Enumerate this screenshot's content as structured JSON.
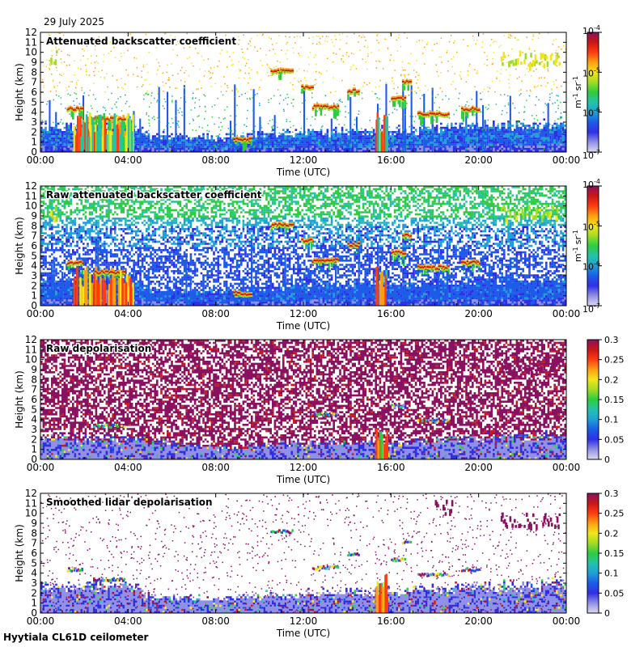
{
  "date": "29 July 2025",
  "footer": "Hyytiala CL61D ceilometer",
  "colors": {
    "scale": [
      "#dcdcf0",
      "#9090e6",
      "#2f2fe6",
      "#1c5ce8",
      "#1ea0d8",
      "#22c4a8",
      "#2ecc40",
      "#a2dc22",
      "#f2e61a",
      "#ff9f10",
      "#ff3c10",
      "#c81818",
      "#8a1060"
    ],
    "noise": "#c8c8ec"
  },
  "chart_data": [
    {
      "type": "heatmap",
      "title": "Attenuated backscatter coefficient",
      "xlabel": "Time (UTC)",
      "ylabel": "Height (km)",
      "xticks": [
        "00:00",
        "04:00",
        "08:00",
        "12:00",
        "16:00",
        "20:00",
        "00:00"
      ],
      "yticks": [
        "0",
        "1",
        "2",
        "3",
        "4",
        "5",
        "6",
        "7",
        "8",
        "9",
        "10",
        "11",
        "12"
      ],
      "ylim": [
        0,
        12
      ],
      "xlim_hours": [
        0,
        24
      ],
      "colorbar": {
        "scale": "log",
        "range": [
          1e-07,
          0.0001
        ],
        "ticks": [
          {
            "base": "10",
            "exp": "-7"
          },
          {
            "base": "10",
            "exp": "-6"
          },
          {
            "base": "10",
            "exp": "-5"
          },
          {
            "base": "10",
            "exp": "-4"
          }
        ],
        "unit": {
          "m": "m",
          "m_exp": "-1",
          "sr": "sr",
          "sr_exp": "-1"
        }
      },
      "scene": {
        "boundary_layer_top_km": [
          [
            0,
            3.0
          ],
          [
            2,
            3.2
          ],
          [
            4,
            3.5
          ],
          [
            5,
            2.0
          ],
          [
            8,
            1.8
          ],
          [
            12,
            2.4
          ],
          [
            16,
            2.6
          ],
          [
            20,
            3.1
          ],
          [
            24,
            3.4
          ]
        ],
        "cloud_layers": [
          {
            "t0": 1.2,
            "t1": 1.9,
            "h": 4.3
          },
          {
            "t0": 2.4,
            "t1": 3.8,
            "h": 3.3
          },
          {
            "t0": 8.8,
            "t1": 9.6,
            "h": 1.2
          },
          {
            "t0": 10.5,
            "t1": 11.5,
            "h": 8.1
          },
          {
            "t0": 11.9,
            "t1": 12.4,
            "h": 6.5
          },
          {
            "t0": 12.4,
            "t1": 13.6,
            "h": 4.5
          },
          {
            "t0": 14.0,
            "t1": 14.5,
            "h": 6.1
          },
          {
            "t0": 16.0,
            "t1": 16.6,
            "h": 5.3
          },
          {
            "t0": 16.5,
            "t1": 16.9,
            "h": 7.0
          },
          {
            "t0": 17.2,
            "t1": 18.6,
            "h": 3.8
          },
          {
            "t0": 19.2,
            "t1": 20.0,
            "h": 4.3
          }
        ],
        "high_layers": [
          {
            "t0": 21.0,
            "t1": 23.7,
            "h": 9.5
          },
          {
            "t0": 0.4,
            "t1": 0.8,
            "h": 9.6
          }
        ],
        "precipitation": [
          {
            "t0": 1.5,
            "t1": 4.2
          },
          {
            "t0": 15.3,
            "t1": 15.8
          }
        ],
        "clear_sky_noise": false,
        "depol": false
      }
    },
    {
      "type": "heatmap",
      "title": "Raw attenuated backscatter coefficient",
      "xlabel": "Time (UTC)",
      "ylabel": "Height (km)",
      "xticks": [
        "00:00",
        "04:00",
        "08:00",
        "12:00",
        "16:00",
        "20:00",
        "00:00"
      ],
      "yticks": [
        "0",
        "1",
        "2",
        "3",
        "4",
        "5",
        "6",
        "7",
        "8",
        "9",
        "10",
        "11",
        "12"
      ],
      "ylim": [
        0,
        12
      ],
      "xlim_hours": [
        0,
        24
      ],
      "colorbar": {
        "scale": "log",
        "range": [
          1e-07,
          0.0001
        ],
        "ticks": [
          {
            "base": "10",
            "exp": "-7"
          },
          {
            "base": "10",
            "exp": "-6"
          },
          {
            "base": "10",
            "exp": "-5"
          },
          {
            "base": "10",
            "exp": "-4"
          }
        ],
        "unit": {
          "m": "m",
          "m_exp": "-1",
          "sr": "sr",
          "sr_exp": "-1"
        }
      },
      "scene": {
        "boundary_layer_top_km": [
          [
            0,
            3.0
          ],
          [
            2,
            3.2
          ],
          [
            4,
            3.5
          ],
          [
            5,
            2.0
          ],
          [
            8,
            1.8
          ],
          [
            12,
            2.4
          ],
          [
            16,
            2.6
          ],
          [
            20,
            3.1
          ],
          [
            24,
            3.4
          ]
        ],
        "cloud_layers": [
          {
            "t0": 1.2,
            "t1": 1.9,
            "h": 4.3
          },
          {
            "t0": 2.4,
            "t1": 3.8,
            "h": 3.3
          },
          {
            "t0": 8.8,
            "t1": 9.6,
            "h": 1.2
          },
          {
            "t0": 10.5,
            "t1": 11.5,
            "h": 8.1
          },
          {
            "t0": 11.9,
            "t1": 12.4,
            "h": 6.5
          },
          {
            "t0": 12.4,
            "t1": 13.6,
            "h": 4.5
          },
          {
            "t0": 14.0,
            "t1": 14.5,
            "h": 6.1
          },
          {
            "t0": 16.0,
            "t1": 16.6,
            "h": 5.3
          },
          {
            "t0": 16.5,
            "t1": 16.9,
            "h": 7.0
          },
          {
            "t0": 17.2,
            "t1": 18.6,
            "h": 3.8
          },
          {
            "t0": 19.2,
            "t1": 20.0,
            "h": 4.3
          }
        ],
        "high_layers": [
          {
            "t0": 21.0,
            "t1": 23.7,
            "h": 9.5
          },
          {
            "t0": 0.4,
            "t1": 0.8,
            "h": 9.6
          }
        ],
        "precipitation": [
          {
            "t0": 1.5,
            "t1": 4.2
          },
          {
            "t0": 15.3,
            "t1": 15.8
          }
        ],
        "clear_sky_noise": true,
        "depol": false
      }
    },
    {
      "type": "heatmap",
      "title": "Raw depolarisation",
      "xlabel": "Time (UTC)",
      "ylabel": "Height (km)",
      "xticks": [
        "00:00",
        "04:00",
        "08:00",
        "12:00",
        "16:00",
        "20:00",
        "00:00"
      ],
      "yticks": [
        "0",
        "1",
        "2",
        "3",
        "4",
        "5",
        "6",
        "7",
        "8",
        "9",
        "10",
        "11",
        "12"
      ],
      "ylim": [
        0,
        12
      ],
      "xlim_hours": [
        0,
        24
      ],
      "colorbar": {
        "scale": "linear",
        "range": [
          0,
          0.3
        ],
        "ticks": [
          "0",
          "0.05",
          "0.1",
          "0.15",
          "0.2",
          "0.25",
          "0.3"
        ]
      },
      "scene": {
        "boundary_layer_top_km": [
          [
            0,
            2.6
          ],
          [
            4,
            2.4
          ],
          [
            8,
            1.5
          ],
          [
            12,
            2.0
          ],
          [
            16,
            2.0
          ],
          [
            20,
            2.6
          ],
          [
            24,
            2.8
          ]
        ],
        "cloud_layers": [
          {
            "t0": 2.4,
            "t1": 3.8,
            "h": 3.3
          },
          {
            "t0": 12.4,
            "t1": 13.6,
            "h": 4.5
          },
          {
            "t0": 16.0,
            "t1": 16.6,
            "h": 5.3
          },
          {
            "t0": 17.2,
            "t1": 18.6,
            "h": 3.8
          }
        ],
        "high_layers": [
          {
            "t0": 21.0,
            "t1": 23.7,
            "h": 9.5
          }
        ],
        "precipitation": [
          {
            "t0": 15.3,
            "t1": 15.8
          }
        ],
        "clear_sky_noise": true,
        "depol": true,
        "depol_noise": true
      }
    },
    {
      "type": "heatmap",
      "title": "Smoothed lidar depolarisation",
      "xlabel": "Time (UTC)",
      "ylabel": "Height (km)",
      "xticks": [
        "00:00",
        "04:00",
        "08:00",
        "12:00",
        "16:00",
        "20:00",
        "00:00"
      ],
      "yticks": [
        "0",
        "1",
        "2",
        "3",
        "4",
        "5",
        "6",
        "7",
        "8",
        "9",
        "10",
        "11",
        "12"
      ],
      "ylim": [
        0,
        12
      ],
      "xlim_hours": [
        0,
        24
      ],
      "colorbar": {
        "scale": "linear",
        "range": [
          0,
          0.3
        ],
        "ticks": [
          "0",
          "0.05",
          "0.1",
          "0.15",
          "0.2",
          "0.25",
          "0.3"
        ]
      },
      "scene": {
        "boundary_layer_top_km": [
          [
            0,
            3.0
          ],
          [
            2,
            3.2
          ],
          [
            4,
            3.5
          ],
          [
            5,
            2.0
          ],
          [
            8,
            1.8
          ],
          [
            12,
            2.4
          ],
          [
            16,
            2.6
          ],
          [
            20,
            3.1
          ],
          [
            24,
            3.4
          ]
        ],
        "cloud_layers": [
          {
            "t0": 1.2,
            "t1": 1.9,
            "h": 4.3
          },
          {
            "t0": 2.4,
            "t1": 3.8,
            "h": 3.3
          },
          {
            "t0": 10.5,
            "t1": 11.5,
            "h": 8.1
          },
          {
            "t0": 12.4,
            "t1": 13.6,
            "h": 4.5
          },
          {
            "t0": 14.0,
            "t1": 14.5,
            "h": 5.8
          },
          {
            "t0": 16.0,
            "t1": 16.6,
            "h": 5.3
          },
          {
            "t0": 16.5,
            "t1": 16.9,
            "h": 7.0
          },
          {
            "t0": 17.2,
            "t1": 18.6,
            "h": 3.8
          },
          {
            "t0": 19.2,
            "t1": 20.0,
            "h": 4.3
          }
        ],
        "high_layers": [
          {
            "t0": 21.0,
            "t1": 23.7,
            "h": 9.5
          },
          {
            "t0": 18.0,
            "t1": 18.8,
            "h": 10.8
          }
        ],
        "precipitation": [
          {
            "t0": 15.3,
            "t1": 15.8
          }
        ],
        "clear_sky_noise": false,
        "depol": true,
        "depol_noise": false
      }
    }
  ]
}
